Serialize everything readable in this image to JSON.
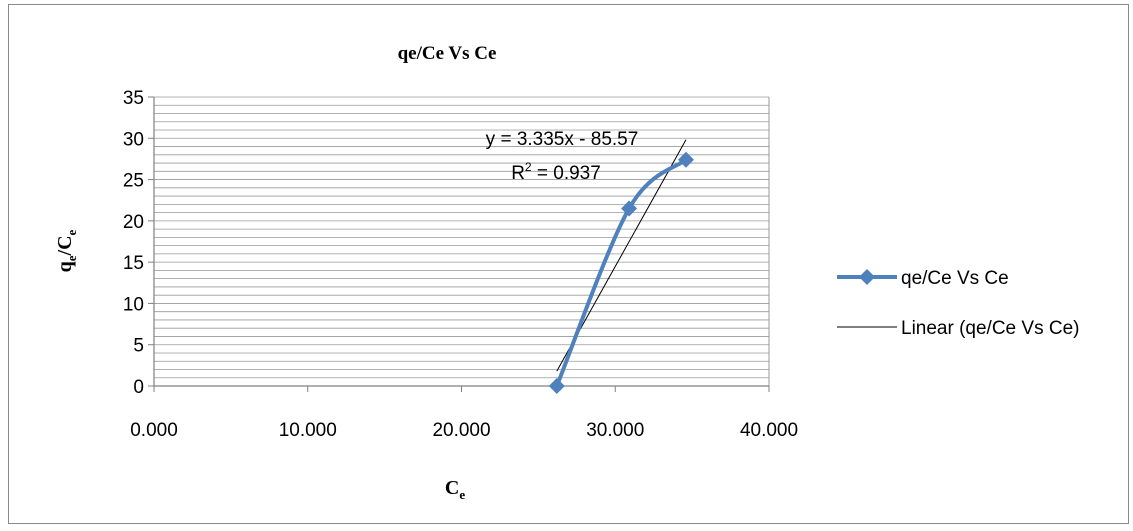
{
  "chart_data": {
    "type": "scatter",
    "title": "qe/Ce Vs Ce",
    "xlabel": "C",
    "xlabel_sub": "e",
    "ylabel": "q",
    "ylabel_sub_1": "e",
    "ylabel_mid": "/C",
    "ylabel_sub_2": "e",
    "xlim": [
      0,
      40
    ],
    "ylim": [
      0,
      35
    ],
    "x_ticks": [
      0,
      10,
      20,
      30,
      40
    ],
    "x_tick_labels": [
      "0.000",
      "10.000",
      "20.000",
      "30.000",
      "40.000"
    ],
    "y_ticks": [
      0,
      5,
      10,
      15,
      20,
      25,
      30,
      35
    ],
    "y_tick_labels": [
      "0",
      "5",
      "10",
      "15",
      "20",
      "25",
      "30",
      "35"
    ],
    "grid": true,
    "legend_position": "right",
    "series": [
      {
        "name": "qe/Ce Vs Ce",
        "x": [
          26.2,
          30.9,
          34.6
        ],
        "y": [
          0,
          21.5,
          27.4
        ],
        "style": "smoothed line with diamond markers",
        "color": "#4F81BD"
      }
    ],
    "trendline": {
      "name": "Linear (qe/Ce Vs Ce)",
      "slope": 3.335,
      "intercept": -85.57,
      "x_range": [
        26.2,
        34.6
      ],
      "color": "#000000",
      "equation_label": "y = 3.335x - 85.57",
      "r2_label_prefix": "R",
      "r2_label_sup": "2",
      "r2_label_value": " = 0.937"
    }
  }
}
